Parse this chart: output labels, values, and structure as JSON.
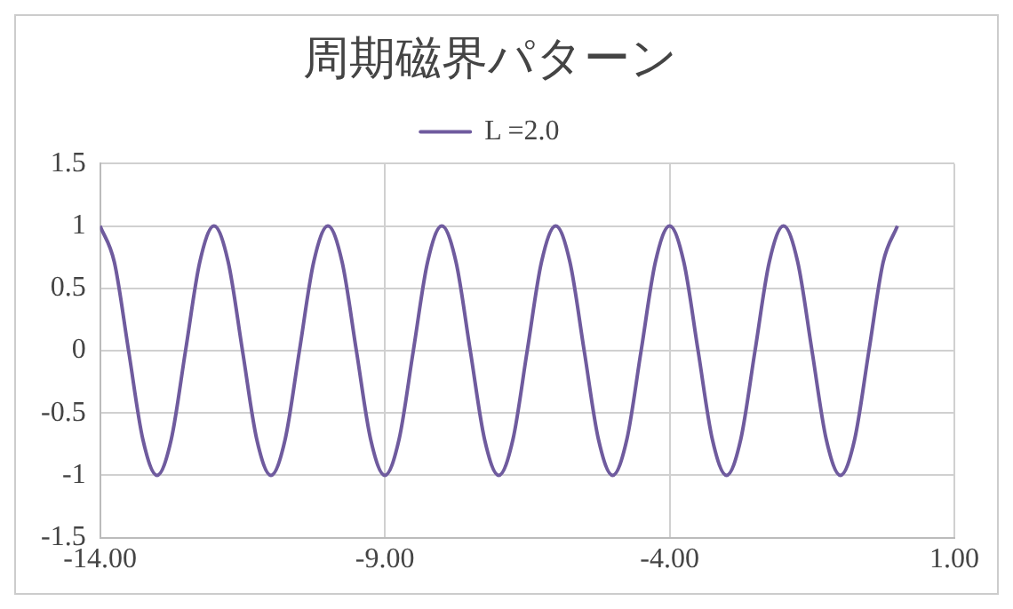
{
  "chart_data": {
    "type": "line",
    "title": "周期磁界パターン",
    "x": [
      -14,
      -13.75,
      -13.5,
      -13.25,
      -13,
      -12.75,
      -12.5,
      -12.25,
      -12,
      -11.75,
      -11.5,
      -11.25,
      -11,
      -10.75,
      -10.5,
      -10.25,
      -10,
      -9.75,
      -9.5,
      -9.25,
      -9,
      -8.75,
      -8.5,
      -8.25,
      -8,
      -7.75,
      -7.5,
      -7.25,
      -7,
      -6.75,
      -6.5,
      -6.25,
      -6,
      -5.75,
      -5.5,
      -5.25,
      -5,
      -4.75,
      -4.5,
      -4.25,
      -4,
      -3.75,
      -3.5,
      -3.25,
      -3,
      -2.75,
      -2.5,
      -2.25,
      -2,
      -1.75,
      -1.5,
      -1.25,
      -1,
      -0.75,
      -0.5,
      -0.25,
      0
    ],
    "series": [
      {
        "name": "L =2.0",
        "color": "#6f5b9e",
        "values": [
          1,
          0.71,
          0,
          -0.71,
          -1,
          -0.71,
          0,
          0.71,
          1,
          0.71,
          0,
          -0.71,
          -1,
          -0.71,
          0,
          0.71,
          1,
          0.71,
          0,
          -0.71,
          -1,
          -0.71,
          0,
          0.71,
          1,
          0.71,
          0,
          -0.71,
          -1,
          -0.71,
          0,
          0.71,
          1,
          0.71,
          0,
          -0.71,
          -1,
          -0.71,
          0,
          0.71,
          1,
          0.71,
          0,
          -0.71,
          -1,
          -0.71,
          0,
          0.71,
          1,
          0.71,
          0,
          -0.71,
          -1,
          -0.71,
          0,
          0.71,
          1
        ]
      }
    ],
    "xlim": [
      -14,
      1
    ],
    "xticks": [
      {
        "value": -14,
        "label": "-14.00"
      },
      {
        "value": -9,
        "label": "-9.00"
      },
      {
        "value": -4,
        "label": "-4.00"
      },
      {
        "value": 1,
        "label": "1.00"
      }
    ],
    "ylim": [
      -1.5,
      1.5
    ],
    "yticks": [
      -1.5,
      -1,
      -0.5,
      0,
      0.5,
      1,
      1.5
    ],
    "grid": true,
    "legend": "top",
    "marker": "none",
    "line_style": "solid"
  }
}
